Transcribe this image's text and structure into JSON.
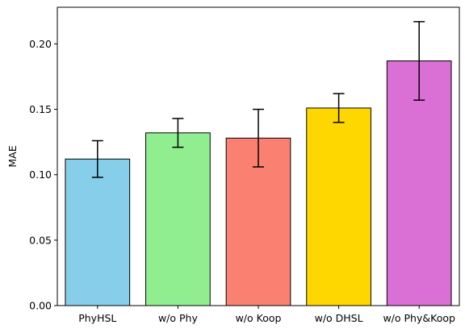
{
  "chart_data": {
    "type": "bar",
    "title": "",
    "xlabel": "",
    "ylabel": "MAE",
    "categories": [
      "PhyHSL",
      "w/o Phy",
      "w/o Koop",
      "w/o DHSL",
      "w/o Phy&Koop"
    ],
    "values": [
      0.112,
      0.132,
      0.128,
      0.151,
      0.187
    ],
    "error_low": [
      0.098,
      0.121,
      0.106,
      0.14,
      0.157
    ],
    "error_high": [
      0.126,
      0.143,
      0.15,
      0.162,
      0.217
    ],
    "colors": [
      "#87CEEB",
      "#90EE90",
      "#FA8072",
      "#FFD700",
      "#DA70D6"
    ],
    "ylim": [
      0,
      0.228
    ],
    "yticks": [
      0.0,
      0.05,
      0.1,
      0.15,
      0.2
    ],
    "ytick_labels": [
      "0.00",
      "0.05",
      "0.10",
      "0.15",
      "0.20"
    ],
    "grid": false,
    "legend": "none"
  }
}
